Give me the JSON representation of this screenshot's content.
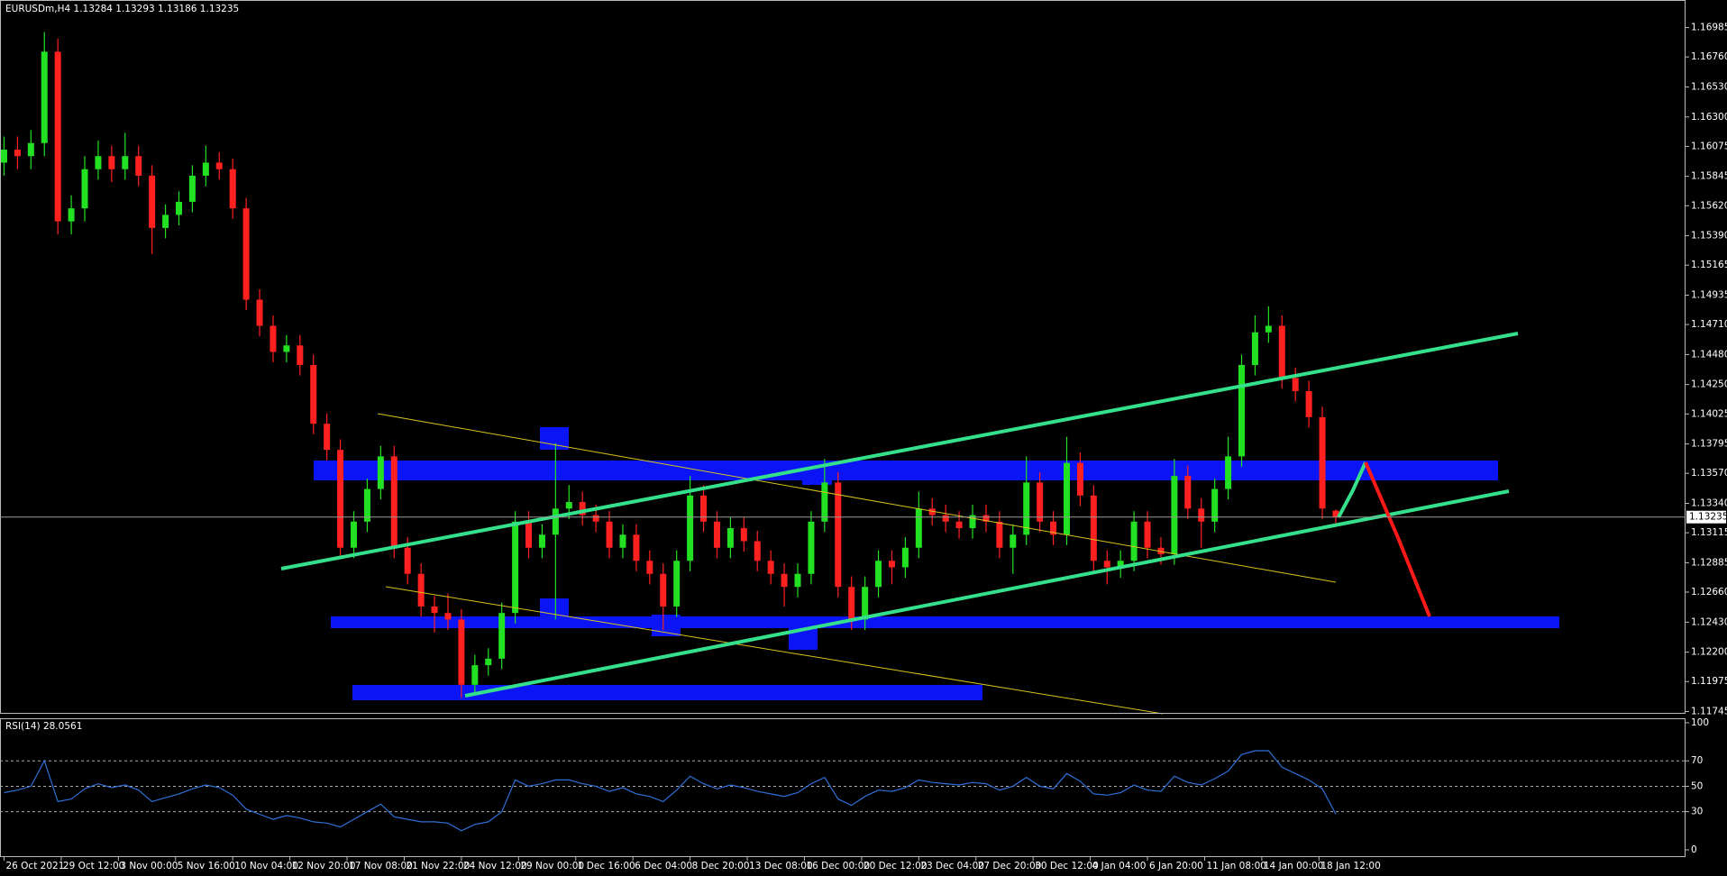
{
  "chart_data": [
    {
      "type": "candlestick",
      "title": "EURUSDm,H4  1.13284 1.13293 1.13186 1.13235",
      "up_color": "#22e022",
      "down_color": "#ff2020",
      "xlim": [
        -0.3,
        125
      ],
      "ylim": [
        1.11728,
        1.17196
      ],
      "last": 1.13235,
      "yticks": [
        1.11745,
        1.11975,
        {
          "value": 1.122,
          "label": "1.12200"
        },
        {
          "value": 1.1243,
          "label": "1.12430"
        },
        {
          "value": 1.1266,
          "label": "1.12660"
        },
        1.12885,
        1.13115,
        {
          "value": 1.1334,
          "label": "1.13340"
        },
        {
          "value": 1.1357,
          "label": "1.13570"
        },
        1.13795,
        1.14025,
        {
          "value": 1.1425,
          "label": "1.14250"
        },
        {
          "value": 1.1448,
          "label": "1.14480"
        },
        {
          "value": 1.1471,
          "label": "1.14710"
        },
        1.14935,
        1.15165,
        {
          "value": 1.1539,
          "label": "1.15390"
        },
        {
          "value": 1.1562,
          "label": "1.15620"
        },
        1.15845,
        1.16075,
        {
          "value": 1.163,
          "label": "1.16300"
        },
        {
          "value": 1.1653,
          "label": "1.16530"
        },
        {
          "value": 1.1676,
          "label": "1.16760"
        },
        1.16985
      ],
      "open": [
        1.1595,
        1.1605,
        1.16,
        1.161,
        1.168,
        1.155,
        1.156,
        1.159,
        1.16,
        1.159,
        1.16,
        1.1585,
        1.1545,
        1.1555,
        1.1565,
        1.1585,
        1.1595,
        1.159,
        1.156,
        1.149,
        1.147,
        1.145,
        1.1455,
        1.144,
        1.1395,
        1.1375,
        1.13,
        1.132,
        1.1345,
        1.137,
        1.13,
        1.128,
        1.1255,
        1.125,
        1.1245,
        1.1195,
        1.121,
        1.1215,
        1.125,
        1.132,
        1.13,
        1.131,
        1.133,
        1.1335,
        1.1325,
        1.132,
        1.13,
        1.131,
        1.129,
        1.128,
        1.1255,
        1.129,
        1.134,
        1.132,
        1.13,
        1.1315,
        1.1305,
        1.129,
        1.128,
        1.127,
        1.128,
        1.132,
        1.135,
        1.127,
        1.1245,
        1.127,
        1.129,
        1.1285,
        1.13,
        1.133,
        1.1325,
        1.132,
        1.1315,
        1.1325,
        1.132,
        1.13,
        1.131,
        1.135,
        1.132,
        1.131,
        1.1365,
        1.134,
        1.129,
        1.1285,
        1.129,
        1.132,
        1.13,
        1.1295,
        1.1355,
        1.133,
        1.132,
        1.1345,
        1.137,
        1.144,
        1.1465,
        1.147,
        1.143,
        1.142,
        1.14,
        1.13284
      ],
      "high": [
        1.1615,
        1.1615,
        1.162,
        1.1695,
        1.169,
        1.157,
        1.16,
        1.1612,
        1.1608,
        1.1618,
        1.1608,
        1.1593,
        1.1563,
        1.1573,
        1.1593,
        1.1608,
        1.1603,
        1.1598,
        1.1568,
        1.1498,
        1.1478,
        1.1463,
        1.1463,
        1.1448,
        1.1403,
        1.1383,
        1.1328,
        1.1353,
        1.1378,
        1.1378,
        1.1308,
        1.1288,
        1.1263,
        1.1265,
        1.1253,
        1.1218,
        1.1223,
        1.1258,
        1.1328,
        1.1328,
        1.1318,
        1.138,
        1.1348,
        1.1343,
        1.1333,
        1.1328,
        1.1318,
        1.1318,
        1.1298,
        1.1288,
        1.1298,
        1.1355,
        1.1348,
        1.1328,
        1.1323,
        1.1323,
        1.1313,
        1.1298,
        1.1288,
        1.1288,
        1.1328,
        1.1368,
        1.1358,
        1.1278,
        1.1278,
        1.1298,
        1.1298,
        1.1308,
        1.1343,
        1.1338,
        1.1333,
        1.1328,
        1.1333,
        1.1333,
        1.1328,
        1.1318,
        1.137,
        1.1358,
        1.1328,
        1.1385,
        1.1373,
        1.1348,
        1.1298,
        1.1298,
        1.1328,
        1.1328,
        1.1308,
        1.1368,
        1.1363,
        1.1338,
        1.1353,
        1.1385,
        1.1448,
        1.1478,
        1.1485,
        1.1478,
        1.1438,
        1.1428,
        1.1408,
        1.13293
      ],
      "low": [
        1.1585,
        1.159,
        1.159,
        1.16,
        1.154,
        1.154,
        1.155,
        1.1582,
        1.158,
        1.1582,
        1.1577,
        1.1525,
        1.1537,
        1.1547,
        1.1557,
        1.1577,
        1.1582,
        1.1552,
        1.1482,
        1.1462,
        1.1442,
        1.1442,
        1.1432,
        1.1387,
        1.1367,
        1.1292,
        1.1292,
        1.1312,
        1.1337,
        1.1292,
        1.1272,
        1.1247,
        1.1235,
        1.1237,
        1.1185,
        1.1187,
        1.1202,
        1.1207,
        1.1242,
        1.1292,
        1.1292,
        1.1245,
        1.1322,
        1.1317,
        1.1312,
        1.1292,
        1.1292,
        1.1282,
        1.1272,
        1.1237,
        1.1247,
        1.1282,
        1.1312,
        1.1292,
        1.1292,
        1.1297,
        1.1282,
        1.1272,
        1.1255,
        1.1262,
        1.1272,
        1.1312,
        1.1262,
        1.1237,
        1.1237,
        1.1262,
        1.1272,
        1.1277,
        1.1292,
        1.1317,
        1.1312,
        1.1307,
        1.1307,
        1.1312,
        1.1292,
        1.128,
        1.1302,
        1.1312,
        1.1302,
        1.1302,
        1.1332,
        1.1282,
        1.1272,
        1.1277,
        1.1282,
        1.1292,
        1.1287,
        1.1287,
        1.1322,
        1.13,
        1.1312,
        1.1337,
        1.1362,
        1.1432,
        1.1457,
        1.1422,
        1.1412,
        1.1392,
        1.1322,
        1.13186
      ],
      "close": [
        1.1605,
        1.16,
        1.161,
        1.168,
        1.155,
        1.156,
        1.159,
        1.16,
        1.159,
        1.16,
        1.1585,
        1.1545,
        1.1555,
        1.1565,
        1.1585,
        1.1595,
        1.159,
        1.156,
        1.149,
        1.147,
        1.145,
        1.1455,
        1.144,
        1.1395,
        1.1375,
        1.13,
        1.132,
        1.1345,
        1.137,
        1.13,
        1.128,
        1.1255,
        1.125,
        1.1245,
        1.1195,
        1.121,
        1.1215,
        1.125,
        1.132,
        1.13,
        1.131,
        1.133,
        1.1335,
        1.1325,
        1.132,
        1.13,
        1.131,
        1.129,
        1.128,
        1.1255,
        1.129,
        1.134,
        1.132,
        1.13,
        1.1315,
        1.1305,
        1.129,
        1.128,
        1.127,
        1.128,
        1.132,
        1.135,
        1.127,
        1.1245,
        1.127,
        1.129,
        1.1285,
        1.13,
        1.133,
        1.1325,
        1.132,
        1.1315,
        1.1325,
        1.132,
        1.13,
        1.131,
        1.135,
        1.132,
        1.131,
        1.1365,
        1.134,
        1.129,
        1.1285,
        1.129,
        1.132,
        1.13,
        1.1295,
        1.1355,
        1.133,
        1.132,
        1.1345,
        1.137,
        1.144,
        1.1465,
        1.147,
        1.143,
        1.142,
        1.14,
        1.133,
        1.13235
      ]
    },
    {
      "type": "line",
      "title": "RSI(14) 28.0561",
      "xlim": [
        -0.3,
        125
      ],
      "ylim": [
        -5.7,
        103.5
      ],
      "color": "#2f6fd6",
      "yticks": [
        0,
        30,
        50,
        70,
        100
      ],
      "levels": [
        30,
        50,
        70
      ],
      "xticks": [
        {
          "value": 0,
          "label": "26 Oct 2021"
        },
        {
          "value": 4.25,
          "label": "29 Oct 12:00"
        },
        {
          "value": 8.5,
          "label": "3 Nov 00:00"
        },
        {
          "value": 12.75,
          "label": "5 Nov 16:00"
        },
        {
          "value": 17,
          "label": "10 Nov 04:00"
        },
        {
          "value": 21.25,
          "label": "12 Nov 20:00"
        },
        {
          "value": 25.5,
          "label": "17 Nov 08:00"
        },
        {
          "value": 29.75,
          "label": "21 Nov 22:00"
        },
        {
          "value": 34,
          "label": "24 Nov 12:00"
        },
        {
          "value": 38.25,
          "label": "29 Nov 00:00"
        },
        {
          "value": 42.5,
          "label": "1 Dec 16:00"
        },
        {
          "value": 46.75,
          "label": "6 Dec 04:00"
        },
        {
          "value": 51,
          "label": "8 Dec 20:00"
        },
        {
          "value": 55.25,
          "label": "13 Dec 08:00"
        },
        {
          "value": 59.5,
          "label": "16 Dec 00:00"
        },
        {
          "value": 63.75,
          "label": "20 Dec 12:00"
        },
        {
          "value": 68,
          "label": "23 Dec 04:00"
        },
        {
          "value": 72.25,
          "label": "27 Dec 20:00"
        },
        {
          "value": 76.5,
          "label": "30 Dec 12:00"
        },
        {
          "value": 80.75,
          "label": "4 Jan 04:00"
        },
        {
          "value": 85,
          "label": "6 Jan 20:00"
        },
        {
          "value": 89.25,
          "label": "11 Jan 08:00"
        },
        {
          "value": 93.5,
          "label": "14 Jan 00:00"
        },
        {
          "value": 97.75,
          "label": "18 Jan 12:00"
        }
      ],
      "values": [
        45,
        47,
        50,
        70,
        38,
        40,
        48,
        52,
        49,
        51,
        47,
        38,
        41,
        44,
        48,
        51,
        49,
        43,
        32,
        28,
        24,
        27,
        25,
        22,
        21,
        18,
        24,
        30,
        36,
        26,
        24,
        22,
        22,
        21,
        15,
        20,
        22,
        30,
        55,
        50,
        52,
        55,
        55,
        52,
        50,
        46,
        49,
        44,
        42,
        38,
        47,
        58,
        52,
        48,
        51,
        49,
        46,
        44,
        42,
        45,
        52,
        57,
        40,
        35,
        42,
        47,
        46,
        49,
        55,
        53,
        52,
        51,
        53,
        52,
        47,
        50,
        57,
        50,
        48,
        60,
        54,
        44,
        43,
        45,
        51,
        47,
        46,
        58,
        53,
        51,
        56,
        62,
        75,
        78,
        78,
        65,
        60,
        55,
        48,
        28.0561
      ]
    }
  ]
}
